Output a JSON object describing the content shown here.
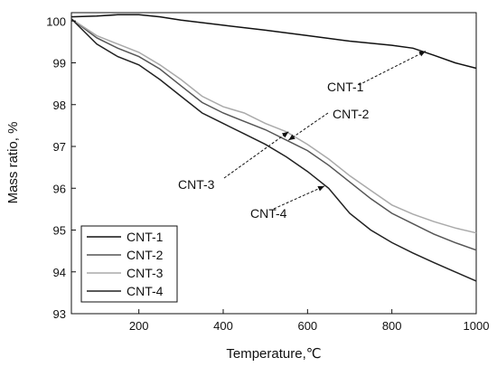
{
  "chart_data": {
    "type": "line",
    "xlabel": "Temperature,℃",
    "ylabel": "Mass ratio, %",
    "xlim": [
      40,
      1000
    ],
    "ylim": [
      93,
      100.2
    ],
    "xticks": [
      200,
      400,
      600,
      800,
      1000
    ],
    "yticks": [
      93,
      94,
      95,
      96,
      97,
      98,
      99,
      100
    ],
    "grid": false,
    "legend_position": "bottom-left",
    "series": [
      {
        "name": "CNT-1",
        "color": "#111111",
        "points": [
          [
            40,
            100.1
          ],
          [
            100,
            100.12
          ],
          [
            150,
            100.15
          ],
          [
            200,
            100.15
          ],
          [
            250,
            100.1
          ],
          [
            300,
            100.02
          ],
          [
            400,
            99.9
          ],
          [
            500,
            99.78
          ],
          [
            600,
            99.65
          ],
          [
            700,
            99.52
          ],
          [
            800,
            99.42
          ],
          [
            850,
            99.35
          ],
          [
            900,
            99.18
          ],
          [
            950,
            99.0
          ],
          [
            1000,
            98.87
          ]
        ]
      },
      {
        "name": "CNT-2",
        "color": "#555555",
        "points": [
          [
            40,
            100.05
          ],
          [
            100,
            99.6
          ],
          [
            150,
            99.35
          ],
          [
            200,
            99.15
          ],
          [
            250,
            98.85
          ],
          [
            300,
            98.45
          ],
          [
            350,
            98.05
          ],
          [
            400,
            97.8
          ],
          [
            450,
            97.6
          ],
          [
            500,
            97.4
          ],
          [
            550,
            97.15
          ],
          [
            600,
            96.9
          ],
          [
            650,
            96.55
          ],
          [
            700,
            96.15
          ],
          [
            750,
            95.75
          ],
          [
            800,
            95.4
          ],
          [
            850,
            95.15
          ],
          [
            900,
            94.9
          ],
          [
            950,
            94.7
          ],
          [
            1000,
            94.52
          ]
        ]
      },
      {
        "name": "CNT-3",
        "color": "#aaaaaa",
        "points": [
          [
            40,
            100.05
          ],
          [
            100,
            99.65
          ],
          [
            150,
            99.45
          ],
          [
            200,
            99.25
          ],
          [
            250,
            98.95
          ],
          [
            300,
            98.6
          ],
          [
            350,
            98.2
          ],
          [
            400,
            97.95
          ],
          [
            450,
            97.8
          ],
          [
            500,
            97.55
          ],
          [
            550,
            97.35
          ],
          [
            600,
            97.05
          ],
          [
            650,
            96.7
          ],
          [
            700,
            96.3
          ],
          [
            750,
            95.95
          ],
          [
            800,
            95.6
          ],
          [
            850,
            95.38
          ],
          [
            900,
            95.2
          ],
          [
            950,
            95.05
          ],
          [
            1000,
            94.93
          ]
        ]
      },
      {
        "name": "CNT-4",
        "color": "#222222",
        "points": [
          [
            40,
            100.05
          ],
          [
            100,
            99.45
          ],
          [
            150,
            99.15
          ],
          [
            200,
            98.95
          ],
          [
            250,
            98.6
          ],
          [
            300,
            98.2
          ],
          [
            350,
            97.8
          ],
          [
            400,
            97.55
          ],
          [
            450,
            97.3
          ],
          [
            500,
            97.05
          ],
          [
            550,
            96.75
          ],
          [
            600,
            96.4
          ],
          [
            650,
            96.0
          ],
          [
            700,
            95.4
          ],
          [
            750,
            95.0
          ],
          [
            800,
            94.7
          ],
          [
            850,
            94.45
          ],
          [
            900,
            94.22
          ],
          [
            950,
            94.0
          ],
          [
            1000,
            93.78
          ]
        ]
      }
    ],
    "annotations": [
      {
        "text": "CNT-1",
        "series": "CNT-1",
        "at_x": 880,
        "at_y": 99.28
      },
      {
        "text": "CNT-2",
        "series": "CNT-2",
        "at_x": 555,
        "at_y": 97.15
      },
      {
        "text": "CNT-3",
        "series": "CNT-3",
        "at_x": 555,
        "at_y": 97.35
      },
      {
        "text": "CNT-4",
        "series": "CNT-4",
        "at_x": 640,
        "at_y": 96.05
      }
    ]
  }
}
